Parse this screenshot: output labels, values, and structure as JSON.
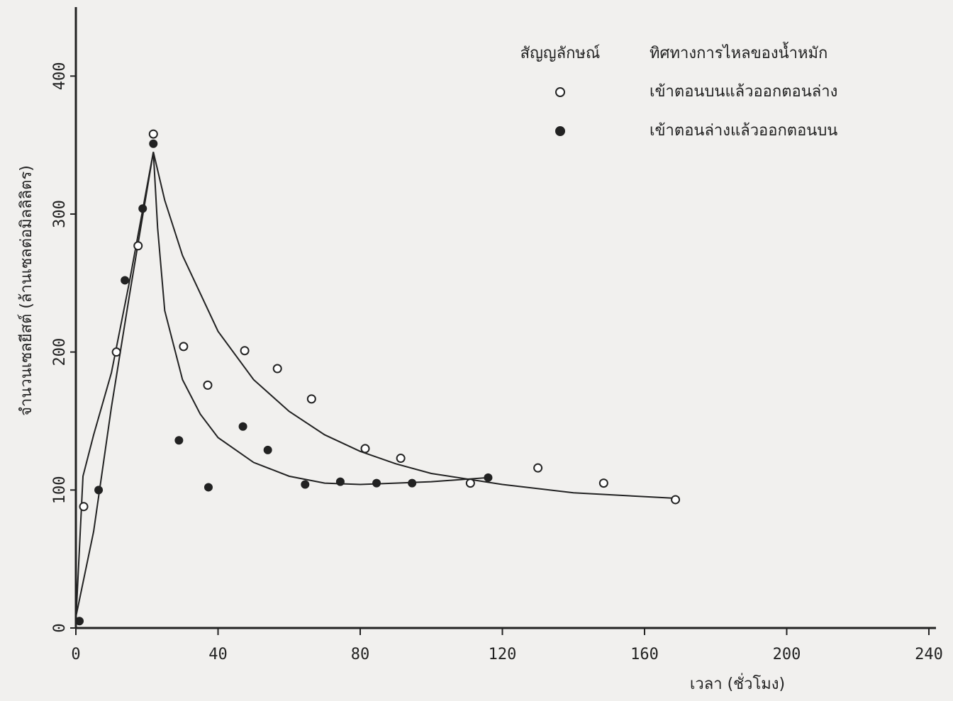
{
  "chart_data": {
    "type": "scatter",
    "x_label": "เวลา (ชั่วโมง)",
    "y_label": "จำนวนเซลยีสต์ (ล้านเซลต่อมิลลิลิตร)",
    "legend_symbol_header": "สัญญลักษณ์",
    "legend_name_header": "ทิศทางการไหลของน้ำหมัก",
    "legend": "upper right",
    "xlim": [
      0,
      242
    ],
    "ylim": [
      0,
      450
    ],
    "xticks": [
      0,
      40,
      80,
      120,
      160,
      200,
      240
    ],
    "yticks": [
      0,
      100,
      200,
      300,
      400
    ],
    "series": [
      {
        "name": "เข้าตอนบนแล้วออกตอนล่าง",
        "color": "#222",
        "marker": "open",
        "x": [
          2.2,
          11.4,
          17.5,
          21.8,
          30.3,
          37.1,
          47.5,
          56.7,
          66.3,
          81.4,
          91.4,
          111,
          130,
          148.5,
          168.7
        ],
        "values": [
          88,
          200,
          277,
          358,
          204,
          176,
          201,
          188,
          166,
          130,
          123,
          105,
          116,
          105,
          93
        ]
      },
      {
        "name": "เข้าตอนล่างแล้วออกตอนบน",
        "color": "#222",
        "marker": "filled",
        "x": [
          1,
          6.4,
          13.8,
          18.8,
          21.8,
          29,
          37.3,
          47,
          54,
          64.5,
          74.4,
          84.6,
          94.6,
          116
        ],
        "values": [
          5,
          100,
          252,
          304,
          351,
          136,
          102,
          146,
          129,
          104,
          106,
          105,
          105,
          109
        ]
      }
    ],
    "curves": [
      {
        "x": [
          0,
          2,
          5,
          10,
          15,
          21.8,
          25,
          30,
          40,
          50,
          60,
          70,
          80,
          90,
          100,
          120,
          140,
          168.7
        ],
        "values": [
          5,
          110,
          140,
          185,
          250,
          345,
          310,
          270,
          215,
          180,
          157,
          140,
          128,
          119,
          112,
          104,
          98,
          94
        ]
      },
      {
        "x": [
          0,
          5,
          10,
          15,
          21.8,
          23,
          25,
          30,
          35,
          40,
          50,
          60,
          70,
          80,
          90,
          100,
          116
        ],
        "values": [
          8,
          70,
          160,
          240,
          345,
          290,
          230,
          180,
          155,
          138,
          120,
          110,
          105,
          104,
          105,
          106,
          109
        ]
      }
    ]
  }
}
